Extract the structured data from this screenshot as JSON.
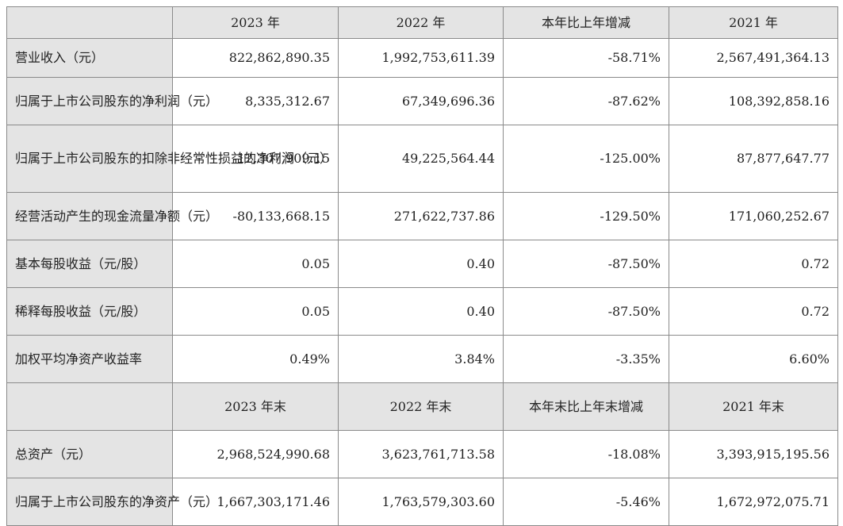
{
  "section1": {
    "headers": [
      "2023 年",
      "2022 年",
      "本年比上年增减",
      "2021 年"
    ],
    "rows": [
      {
        "label": "营业收入（元）",
        "values": [
          "822,862,890.35",
          "1,992,753,611.39",
          "-58.71%",
          "2,567,491,364.13"
        ]
      },
      {
        "label": "归属于上市公司股东的净利润（元）",
        "values": [
          "8,335,312.67",
          "67,349,696.36",
          "-87.62%",
          "108,392,858.16"
        ]
      },
      {
        "label": "归属于上市公司股东的扣除非经常性损益的净利润（元）",
        "values": [
          "-12,307,909.15",
          "49,225,564.44",
          "-125.00%",
          "87,877,647.77"
        ]
      },
      {
        "label": "经营活动产生的现金流量净额（元）",
        "values": [
          "-80,133,668.15",
          "271,622,737.86",
          "-129.50%",
          "171,060,252.67"
        ]
      },
      {
        "label": "基本每股收益（元/股）",
        "values": [
          "0.05",
          "0.40",
          "-87.50%",
          "0.72"
        ]
      },
      {
        "label": "稀释每股收益（元/股）",
        "values": [
          "0.05",
          "0.40",
          "-87.50%",
          "0.72"
        ]
      },
      {
        "label": "加权平均净资产收益率",
        "values": [
          "0.49%",
          "3.84%",
          "-3.35%",
          "6.60%"
        ]
      }
    ]
  },
  "section2": {
    "headers": [
      "2023 年末",
      "2022 年末",
      "本年末比上年末增减",
      "2021 年末"
    ],
    "rows": [
      {
        "label": "总资产（元）",
        "values": [
          "2,968,524,990.68",
          "3,623,761,713.58",
          "-18.08%",
          "3,393,915,195.56"
        ]
      },
      {
        "label": "归属于上市公司股东的净资产（元）",
        "values": [
          "1,667,303,171.46",
          "1,763,579,303.60",
          "-5.46%",
          "1,672,972,075.71"
        ]
      }
    ]
  }
}
